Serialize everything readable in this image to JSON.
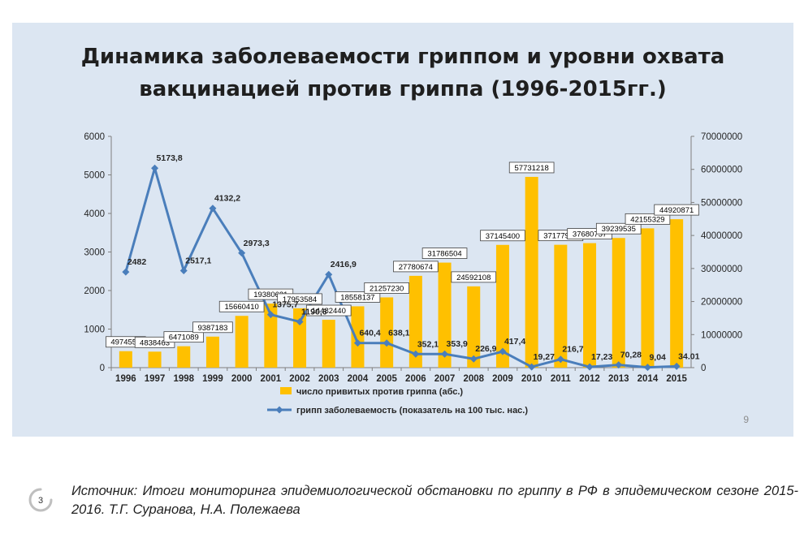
{
  "slide": {
    "title_line1": "Динамика заболеваемости гриппом и уровни охвата",
    "title_line2": "вакцинацией против гриппа (1996-2015гг.)",
    "page_number": "9"
  },
  "footer": {
    "badge_number": "3",
    "source_text": "Источник: Итоги мониторинга эпидемиологической обстановки по гриппу в РФ в эпидемическом сезоне 2015-2016. Т.Г. Суранова, Н.А. Полежаева"
  },
  "chart_data": {
    "type": "bar",
    "categories": [
      "1996",
      "1997",
      "1998",
      "1999",
      "2000",
      "2001",
      "2002",
      "2003",
      "2004",
      "2005",
      "2006",
      "2007",
      "2008",
      "2009",
      "2010",
      "2011",
      "2012",
      "2013",
      "2014",
      "2015"
    ],
    "series": [
      {
        "name": "число привитых против гриппа (абс.)",
        "type": "bar",
        "axis": "right",
        "color": "#ffc000",
        "values": [
          4974558,
          4838463,
          6471089,
          9387183,
          15660410,
          19380621,
          17953584,
          14482440,
          18558137,
          21257230,
          27780674,
          31786504,
          24592108,
          37145400,
          57731218,
          37177937,
          37680757,
          39239535,
          42155329,
          44920871
        ],
        "labels": [
          "4974558",
          "4838463",
          "6471089",
          "9387183",
          "15660410",
          "19380621",
          "17953584",
          "14482440",
          "18558137",
          "21257230",
          "27780674",
          "31786504",
          "24592108",
          "37145400",
          "57731218",
          "37177937",
          "37680757",
          "39239535",
          "42155329",
          "44920871"
        ]
      },
      {
        "name": "грипп заболеваемость (показатель на 100 тыс. нас.)",
        "type": "line",
        "axis": "left",
        "color": "#4a7ebb",
        "values": [
          2482,
          5173.8,
          2517.1,
          4132.2,
          2973.3,
          1375.7,
          1190.6,
          2416.9,
          640.4,
          638.1,
          352.1,
          353.9,
          226.9,
          417.4,
          19.27,
          216.7,
          17.23,
          70.28,
          9.04,
          34.01
        ],
        "labels": [
          "2482",
          "5173,8",
          "2517,1",
          "4132,2",
          "2973,3",
          "1375,7",
          "1190,6",
          "2416,9",
          "640,4",
          "638,1",
          "352,1",
          "353,9",
          "226,9",
          "417,4",
          "19,27",
          "216,7",
          "17,23",
          "70,28",
          "9,04",
          "34.01"
        ]
      }
    ],
    "y_left": {
      "min": 0,
      "max": 6000,
      "ticks": [
        "0",
        "1000",
        "2000",
        "3000",
        "4000",
        "5000",
        "6000"
      ]
    },
    "y_right": {
      "min": 0,
      "max": 70000000,
      "ticks": [
        "0",
        "10000000",
        "20000000",
        "30000000",
        "40000000",
        "50000000",
        "60000000",
        "70000000"
      ]
    },
    "legend_position": "bottom",
    "grid": false
  }
}
